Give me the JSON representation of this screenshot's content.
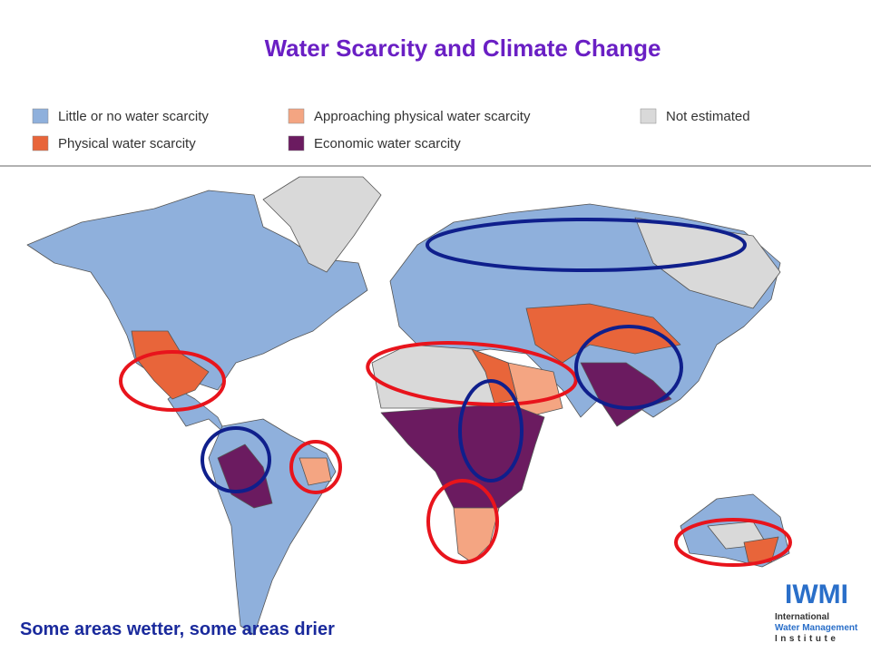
{
  "title": "Water Scarcity and Climate Change",
  "legend": [
    {
      "label": "Little or no water scarcity",
      "color": "#8fb0dc"
    },
    {
      "label": "Physical water scarcity",
      "color": "#e8653a"
    },
    {
      "label": "Approaching physical water scarcity",
      "color": "#f4a582"
    },
    {
      "label": "Economic water scarcity",
      "color": "#6b1b60"
    },
    {
      "label": "Not estimated",
      "color": "#d9d9d9"
    }
  ],
  "caption": "Some areas wetter, some areas drier",
  "logo": {
    "name": "IWMI",
    "lines": [
      "International",
      "Water Management",
      "Institute"
    ]
  }
}
